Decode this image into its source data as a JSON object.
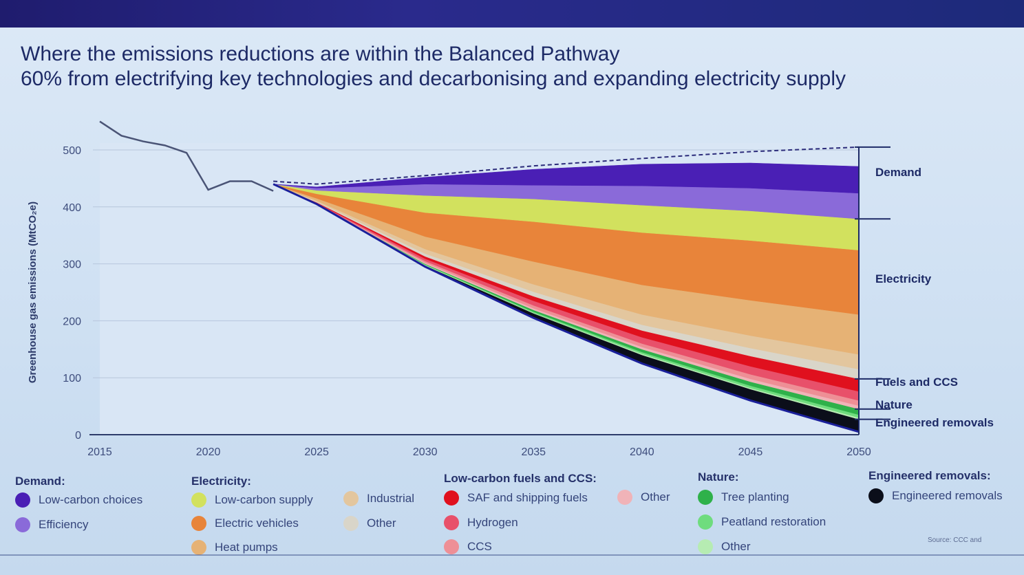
{
  "slide": {
    "title": "Where the emissions reductions are within the Balanced Pathway",
    "subtitle": "60% from electrifying key technologies and decarbonising and expanding electricity supply",
    "source": "Source: CCC and"
  },
  "chart_data": {
    "type": "area",
    "title": "Where the emissions reductions are within the Balanced Pathway",
    "ylabel": "Greenhouse gas emissions (MtCO₂e)",
    "xlabel": "",
    "ylim": [
      0,
      500
    ],
    "xlim": [
      2015,
      2050
    ],
    "x_ticks": [
      "2015",
      "2020",
      "2025",
      "2030",
      "2035",
      "2040",
      "2045",
      "2050"
    ],
    "y_ticks": [
      "0",
      "100",
      "200",
      "300",
      "400",
      "500"
    ],
    "historical": {
      "x": [
        2015,
        2016,
        2017,
        2018,
        2019,
        2020,
        2021,
        2022,
        2023
      ],
      "y": [
        550,
        525,
        515,
        508,
        495,
        430,
        445,
        445,
        428
      ]
    },
    "pathway_x": [
      2023,
      2025,
      2030,
      2035,
      2040,
      2045,
      2050
    ],
    "baseline": [
      445,
      440,
      455,
      472,
      485,
      497,
      505
    ],
    "remaining": [
      440,
      405,
      295,
      205,
      125,
      60,
      5
    ],
    "series": [
      {
        "name": "Low-carbon choices",
        "group": "Demand",
        "color": "#4a1fb5",
        "values": [
          0,
          2,
          12,
          28,
          38,
          44,
          47
        ]
      },
      {
        "name": "Efficiency",
        "group": "Demand",
        "color": "#8a6ad9",
        "values": [
          0,
          4,
          20,
          24,
          34,
          40,
          45
        ]
      },
      {
        "name": "Low-carbon supply",
        "group": "Electricity",
        "color": "#d2e15e",
        "values": [
          0,
          6,
          30,
          40,
          48,
          52,
          55
        ]
      },
      {
        "name": "Electric vehicles",
        "group": "Electricity",
        "color": "#e8843a",
        "values": [
          0,
          8,
          42,
          70,
          92,
          105,
          113
        ]
      },
      {
        "name": "Heat pumps",
        "group": "Electricity",
        "color": "#e6b275",
        "values": [
          0,
          4,
          22,
          40,
          52,
          62,
          70
        ]
      },
      {
        "name": "Industrial",
        "group": "Electricity",
        "color": "#e3c69e",
        "values": [
          0,
          2,
          8,
          13,
          18,
          22,
          26
        ]
      },
      {
        "name": "Other",
        "group": "Electricity",
        "color": "#d9d5c9",
        "values": [
          0,
          1,
          5,
          8,
          10,
          14,
          17
        ]
      },
      {
        "name": "SAF and shipping fuels",
        "group": "Low-carbon fuels and CCS",
        "color": "#e0101e",
        "values": [
          0,
          1,
          4,
          8,
          12,
          18,
          22
        ]
      },
      {
        "name": "Hydrogen",
        "group": "Low-carbon fuels and CCS",
        "color": "#e8506a",
        "values": [
          0,
          1,
          4,
          8,
          11,
          14,
          16
        ]
      },
      {
        "name": "CCS",
        "group": "Low-carbon fuels and CCS",
        "color": "#ee8f96",
        "values": [
          0,
          1,
          3,
          5,
          6,
          8,
          9
        ]
      },
      {
        "name": "Other",
        "group": "Low-carbon fuels and CCS",
        "color": "#f0b3b8",
        "values": [
          0,
          0,
          2,
          3,
          4,
          5,
          6
        ]
      },
      {
        "name": "Tree planting",
        "group": "Nature",
        "color": "#2fb14a",
        "values": [
          0,
          0,
          1,
          3,
          5,
          7,
          10
        ]
      },
      {
        "name": "Peatland restoration",
        "group": "Nature",
        "color": "#6fdc7e",
        "values": [
          0,
          0,
          1,
          2,
          3,
          4,
          5
        ]
      },
      {
        "name": "Other",
        "group": "Nature",
        "color": "#b6ecb2",
        "values": [
          0,
          0,
          1,
          1,
          2,
          2,
          3
        ]
      },
      {
        "name": "Engineered removals",
        "group": "Engineered removals",
        "color": "#0b0e1a",
        "values": [
          0,
          0,
          2,
          8,
          15,
          20,
          22
        ]
      }
    ],
    "bracket_labels": [
      "Demand",
      "Electricity",
      "Fuels and CCS",
      "Nature",
      "Engineered removals"
    ],
    "legend_placement": "bottom",
    "grid": true
  },
  "legend": {
    "groups": [
      {
        "heading": "Demand:",
        "items": [
          "Low-carbon choices",
          "Efficiency"
        ]
      },
      {
        "heading": "Electricity:",
        "items": [
          "Low-carbon supply",
          "Electric vehicles",
          "Heat pumps",
          "Industrial",
          "Other"
        ]
      },
      {
        "heading": "Low-carbon fuels and CCS:",
        "items": [
          "SAF and shipping fuels",
          "Hydrogen",
          "CCS",
          "Other"
        ]
      },
      {
        "heading": "Nature:",
        "items": [
          "Tree planting",
          "Peatland restoration",
          "Other"
        ]
      },
      {
        "heading": "Engineered removals:",
        "items": [
          "Engineered removals"
        ]
      }
    ],
    "colors": {
      "low_carbon_choices": "#4a1fb5",
      "efficiency": "#8a6ad9",
      "low_carbon_supply": "#d2e15e",
      "electric_vehicles": "#e8843a",
      "heat_pumps": "#e6b275",
      "industrial": "#e3c69e",
      "elec_other": "#d9d5c9",
      "saf": "#e0101e",
      "hydrogen": "#e8506a",
      "ccs": "#ee8f96",
      "fuels_other": "#f0b3b8",
      "tree_planting": "#2fb14a",
      "peatland": "#6fdc7e",
      "nature_other": "#b6ecb2",
      "engineered": "#0b0e1a"
    }
  }
}
